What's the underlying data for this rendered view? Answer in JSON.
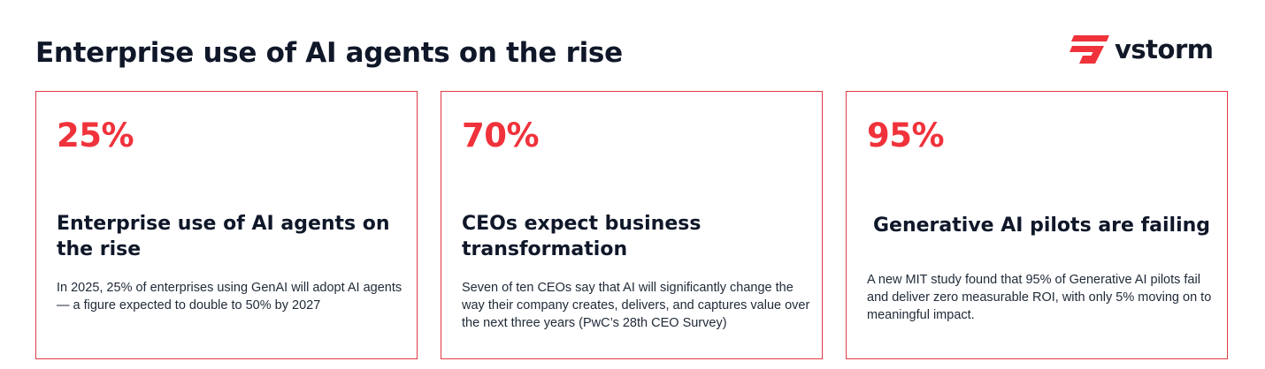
{
  "header": {
    "title": "Enterprise use of AI agents on the rise",
    "logo_text": "vstorm",
    "logo_color": "#f0323b"
  },
  "cards": [
    {
      "stat": "25%",
      "heading": "Enterprise use of AI agents on the rise",
      "description": "In 2025, 25% of enterprises using GenAI will adopt AI agents — a figure expected to double to 50% by 2027"
    },
    {
      "stat": "70%",
      "heading": "CEOs expect business transformation",
      "description": "Seven of ten CEOs say that AI will significantly change the way their company creates, delivers, and captures value over the next three years (PwC’s 28th CEO Survey)"
    },
    {
      "stat": "95%",
      "heading": "Generative AI pilots are failing",
      "description": "A new MIT study found that 95% of Generative AI pilots fail and deliver zero measurable ROI, with only 5% moving on to meaningful impact."
    }
  ],
  "colors": {
    "accent": "#f0323b",
    "border": "#e23a45",
    "text": "#0f1729"
  }
}
